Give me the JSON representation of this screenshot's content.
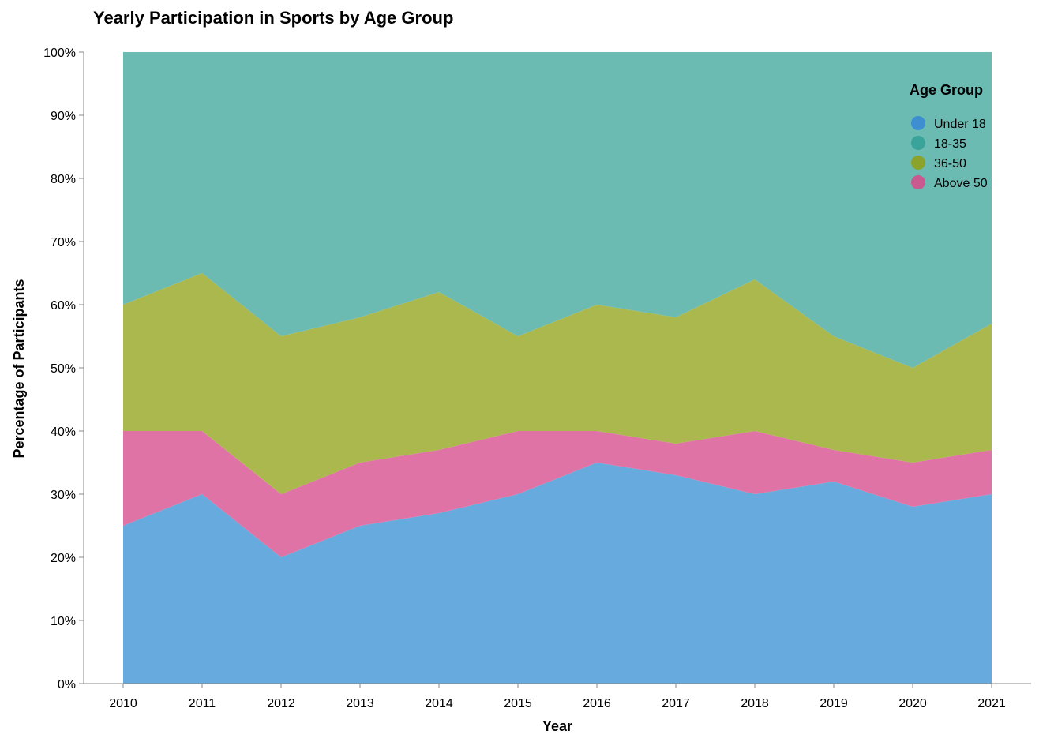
{
  "chart_data": {
    "type": "area",
    "stacked": true,
    "title": "Yearly Participation in Sports by Age Group",
    "xlabel": "Year",
    "ylabel": "Percentage of Participants",
    "x": [
      2010,
      2011,
      2012,
      2013,
      2014,
      2015,
      2016,
      2017,
      2018,
      2019,
      2020,
      2021
    ],
    "ylim": [
      0,
      100
    ],
    "yticks": [
      "0%",
      "10%",
      "20%",
      "30%",
      "40%",
      "50%",
      "60%",
      "70%",
      "80%",
      "90%",
      "100%"
    ],
    "grid": false,
    "legend": {
      "title": "Age Group",
      "position": "top-right",
      "entries": [
        "Under 18",
        "18-35",
        "36-50",
        "Above 50"
      ]
    },
    "stack_order_bottom_to_top": [
      "Under 18",
      "Above 50",
      "36-50",
      "18-35"
    ],
    "series": [
      {
        "name": "Under 18",
        "values": [
          25,
          30,
          20,
          25,
          27,
          30,
          35,
          33,
          30,
          32,
          28,
          30
        ],
        "color": "#66aade",
        "legend_color": "#3d8fd1"
      },
      {
        "name": "18-35",
        "values": [
          40,
          35,
          45,
          42,
          38,
          45,
          40,
          42,
          36,
          45,
          50,
          43
        ],
        "color": "#6bbbb3",
        "legend_color": "#3aa39a"
      },
      {
        "name": "36-50",
        "values": [
          20,
          25,
          25,
          23,
          25,
          15,
          20,
          20,
          24,
          18,
          15,
          20
        ],
        "color": "#aab84e",
        "legend_color": "#8aa32c"
      },
      {
        "name": "Above 50",
        "values": [
          15,
          10,
          10,
          10,
          10,
          10,
          5,
          5,
          10,
          5,
          7,
          7
        ],
        "color": "#e073a5",
        "legend_color": "#c95a8f"
      }
    ]
  }
}
